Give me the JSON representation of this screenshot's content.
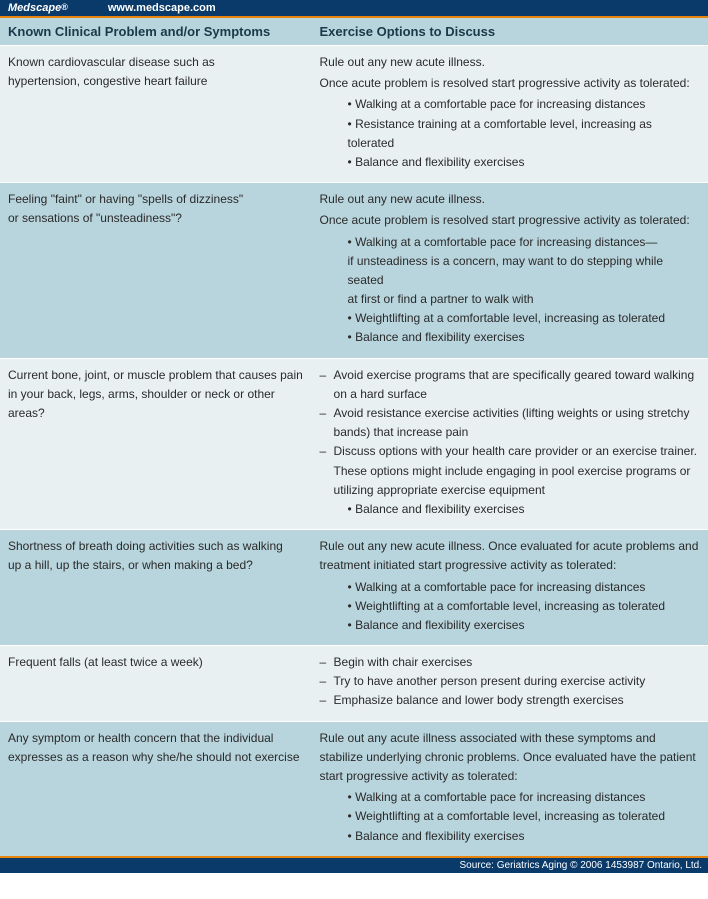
{
  "topbar": {
    "brand": "Medscape",
    "reg": "®",
    "url": "www.medscape.com"
  },
  "headers": {
    "left": "Known Clinical Problem and/or Symptoms",
    "right": "Exercise Options to Discuss"
  },
  "rows": [
    {
      "shade": "alt",
      "left": [
        "Known cardiovascular disease such as",
        "hypertension, congestive heart failure"
      ],
      "right": {
        "intro": [
          "Rule out any new acute illness.",
          "Once acute problem is resolved start progressive activity as tolerated:"
        ],
        "bullets": [
          "Walking at a comfortable pace for increasing distances",
          "Resistance training at a comfortable level, increasing as tolerated",
          "Balance and flexibility exercises"
        ]
      }
    },
    {
      "shade": "shade",
      "left": [
        "Feeling \"faint\" or having \"spells of dizziness\"",
        " or sensations of \"unsteadiness\"?"
      ],
      "right": {
        "intro": [
          "Rule out any new acute illness.",
          "Once acute problem is resolved start progressive activity as tolerated:"
        ],
        "bullets": [
          "Walking at a comfortable pace for increasing distances—\nif unsteadiness is a concern, may want to do stepping while seated\nat first or find a partner to walk with",
          "Weightlifting at a comfortable level, increasing as tolerated",
          "Balance and flexibility exercises"
        ]
      }
    },
    {
      "shade": "alt",
      "left": [
        "Current bone, joint, or muscle problem that causes pain in your back, legs, arms, shoulder or neck or other areas?"
      ],
      "right": {
        "dashes": [
          "Avoid exercise programs that are specifically geared toward walking on a hard surface",
          "Avoid resistance exercise activities (lifting weights or using stretchy bands) that increase pain",
          "Discuss options with your health care provider or an exercise trainer. These options might include engaging in pool exercise programs or utilizing appropriate exercise equipment"
        ],
        "bullets": [
          "Balance and flexibility exercises"
        ]
      }
    },
    {
      "shade": "shade",
      "left": [
        "Shortness of breath doing activities such as walking",
        "up a hill, up the stairs, or when making a bed?"
      ],
      "right": {
        "intro": [
          "Rule out any new acute illness. Once evaluated for acute problems and treatment initiated start progressive activity as tolerated:"
        ],
        "bullets": [
          "Walking at a comfortable pace for increasing distances",
          "Weightlifting at a comfortable level, increasing as tolerated",
          "Balance and flexibility exercises"
        ]
      }
    },
    {
      "shade": "alt",
      "left": [
        "Frequent falls (at least twice a week)"
      ],
      "right": {
        "dashes": [
          "Begin with chair exercises",
          "Try to have another person present during exercise activity",
          "Emphasize balance and lower body strength exercises"
        ]
      }
    },
    {
      "shade": "shade",
      "left": [
        "Any symptom or health concern that the individual expresses as a reason why she/he should not exercise"
      ],
      "right": {
        "intro": [
          "Rule out any acute illness associated with these symptoms and stabilize underlying chronic problems. Once evaluated have the patient start progressive activity as tolerated:"
        ],
        "bullets": [
          "Walking at a comfortable pace for increasing distances",
          "Weightlifting at a comfortable level, increasing as tolerated",
          "Balance and flexibility exercises"
        ]
      }
    }
  ],
  "footer": "Source: Geriatrics Aging © 2006 1453987 Ontario, Ltd."
}
